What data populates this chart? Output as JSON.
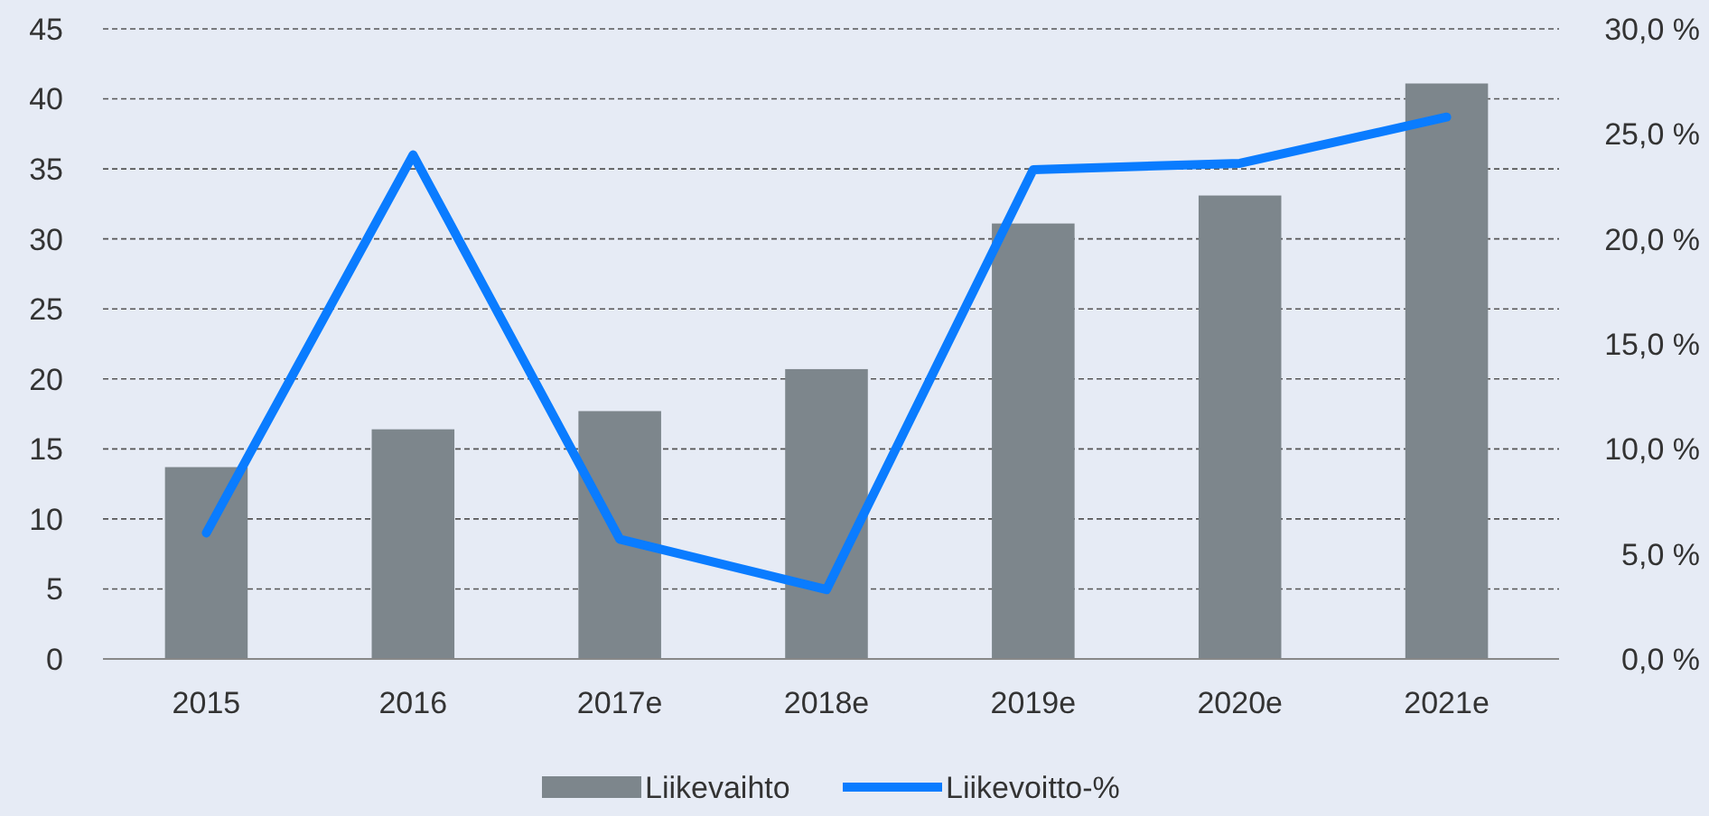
{
  "chart_data": {
    "type": "bar",
    "categories": [
      "2015",
      "2016",
      "2017e",
      "2018e",
      "2019e",
      "2020e",
      "2021e"
    ],
    "series": [
      {
        "name": "Liikevaihto",
        "color": "#7d868c",
        "values": [
          13.7,
          16.4,
          17.7,
          20.7,
          31.1,
          33.1,
          41.1
        ]
      },
      {
        "name": "Liikevoitto-%",
        "type": "line",
        "axis": "y2",
        "color": "#0a7cff",
        "values": [
          6.0,
          24.0,
          5.7,
          3.3,
          23.3,
          23.6,
          25.8
        ]
      }
    ],
    "ylim": [
      0,
      45
    ],
    "yticks": [
      0,
      5,
      10,
      15,
      20,
      25,
      30,
      35,
      40,
      45
    ],
    "y2lim": [
      0,
      30
    ],
    "y2ticks": [
      {
        "value": 0,
        "label": "0,0 %"
      },
      {
        "value": 5,
        "label": "5,0 %"
      },
      {
        "value": 10,
        "label": "10,0 %"
      },
      {
        "value": 15,
        "label": "15,0 %"
      },
      {
        "value": 20,
        "label": "20,0 %"
      },
      {
        "value": 25,
        "label": "25,0 %"
      },
      {
        "value": 30,
        "label": "30,0 %"
      }
    ],
    "grid": "y",
    "legend": "bottom",
    "marker": "none",
    "line_style": "solid"
  }
}
